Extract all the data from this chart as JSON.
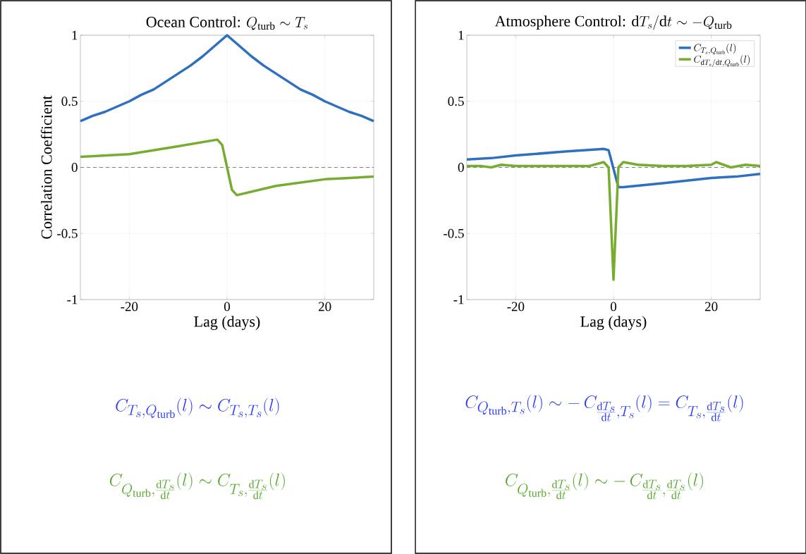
{
  "chart_data": [
    {
      "type": "line",
      "title": "\\mbox{Ocean Control: }Q_{\\mathrm{turb}} \\sim T_s",
      "xlabel": "Lag (days)",
      "ylabel": "Correlation Coefficient",
      "xlim": [
        -30,
        30
      ],
      "ylim": [
        -1,
        1
      ],
      "xticks": [
        -20,
        0,
        20
      ],
      "yticks": [
        -1,
        -0.5,
        0,
        0.5,
        1
      ],
      "grid": true,
      "series": [
        {
          "color": "#2f6fbf",
          "x": [
            -30,
            -27.5,
            -25,
            -22.5,
            -20,
            -17.5,
            -15,
            -12.5,
            -10,
            -7.5,
            -5,
            -2.5,
            0,
            2.5,
            5,
            7.5,
            10,
            12.5,
            15,
            17.5,
            20,
            22.5,
            25,
            27.5,
            30
          ],
          "values": [
            0.35,
            0.39,
            0.42,
            0.46,
            0.5,
            0.55,
            0.59,
            0.65,
            0.71,
            0.77,
            0.84,
            0.92,
            1,
            0.92,
            0.84,
            0.77,
            0.71,
            0.65,
            0.59,
            0.55,
            0.5,
            0.46,
            0.42,
            0.39,
            0.35
          ]
        },
        {
          "color": "#77ac30",
          "x": [
            -30,
            -20,
            -10,
            -2,
            -1,
            0,
            1,
            2,
            10,
            20,
            30
          ],
          "values": [
            0.08,
            0.1,
            0.16,
            0.21,
            0.17,
            0,
            -0.17,
            -0.21,
            -0.14,
            -0.09,
            -0.07
          ]
        }
      ],
      "ref_lines": [
        {
          "axis": "y",
          "value": 0,
          "color": "#808080",
          "line_style": "dashed"
        }
      ],
      "annotations": [
        "C_{T_s,Q_{\\mathrm{turb}}}(l) \\sim C_{T_s,T_s}(l)",
        "C_{Q_{\\mathrm{turb}},\\frac{\\mathrm{d}T_s}{\\mathrm{d}t}}(l) \\sim C_{T_s,\\frac{\\mathrm{d}T_s}{\\mathrm{d}t}}(l)"
      ]
    },
    {
      "type": "line",
      "title": "\\mbox{Atmosphere Control: }\\mathrm{d}T_s/\\mathrm{d}t \\sim -Q_{\\mathrm{turb}}",
      "xlabel": "Lag (days)",
      "xlim": [
        -30,
        30
      ],
      "ylim": [
        -1,
        1
      ],
      "xticks": [
        -20,
        0,
        20
      ],
      "yticks": [
        -1,
        -0.5,
        0,
        0.5,
        1
      ],
      "grid": true,
      "legend": "top right",
      "series": [
        {
          "name": "C_{T_s,Q_{\\mathrm{turb}}}(l)",
          "color": "#2f6fbf",
          "x": [
            -30,
            -25,
            -20,
            -10,
            -2,
            -1,
            1,
            2,
            10,
            20,
            25,
            30
          ],
          "values": [
            0.06,
            0.07,
            0.09,
            0.12,
            0.14,
            0.13,
            -0.15,
            -0.15,
            -0.12,
            -0.08,
            -0.07,
            -0.05
          ]
        },
        {
          "name": "C_{\\mathrm{d}T_s/\\mathrm{d}t,Q_{\\mathrm{turb}}}(l)",
          "color": "#77ac30",
          "x": [
            -30,
            -27,
            -25,
            -23,
            -20,
            -15,
            -10,
            -5,
            -2,
            -1,
            0,
            1,
            2,
            5,
            10,
            15,
            20,
            21,
            24,
            27,
            30
          ],
          "values": [
            0.01,
            0.01,
            0,
            0.02,
            0.01,
            0.01,
            0.01,
            0.01,
            0.04,
            0,
            -0.85,
            0,
            0.04,
            0.02,
            0.01,
            0.01,
            0.02,
            0.04,
            0,
            0.02,
            0.01
          ]
        }
      ],
      "ref_lines": [
        {
          "axis": "y",
          "value": 0,
          "color": "#808080",
          "line_style": "dashed"
        }
      ],
      "annotations": [
        "C_{Q_{\\mathrm{turb}},T_s}(l) \\sim -\\,C_{\\frac{\\mathrm{d}T_s}{\\mathrm{d}t},T_s}(l) = C_{T_s,\\frac{\\mathrm{d}T_s}{\\mathrm{d}t}}(l)",
        "C_{Q_{\\mathrm{turb}},\\frac{\\mathrm{d}T_s}{\\mathrm{d}t}}(l) \\sim -\\,C_{\\frac{\\mathrm{d}T_s}{\\mathrm{d}t},\\frac{\\mathrm{d}T_s}{\\mathrm{d}t}}(l)"
      ]
    }
  ]
}
